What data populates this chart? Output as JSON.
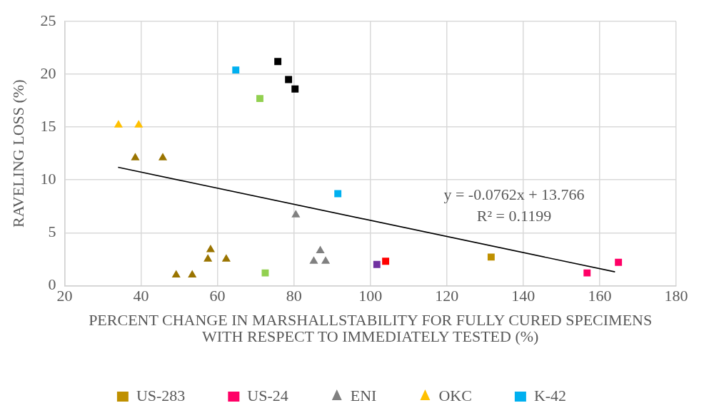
{
  "chart_data": {
    "type": "scatter",
    "xlabel": "PERCENT CHANGE IN MARSHALLSTABILITY FOR FULLY CURED SPECIMENS WITH RESPECT TO IMMEDIATELY TESTED (%)",
    "ylabel": "RAVELING LOSS (%)",
    "xlim": [
      20,
      180
    ],
    "xticks": [
      20,
      40,
      60,
      80,
      100,
      120,
      140,
      160,
      180
    ],
    "ylim": [
      0,
      25
    ],
    "yticks": [
      0,
      5,
      10,
      15,
      20,
      25
    ],
    "grid": true,
    "legend": "bottom",
    "series": [
      {
        "name": "US-283",
        "color": "#bf9000",
        "marker": "square",
        "x": [
          131.6
        ],
        "values": [
          2.7
        ]
      },
      {
        "name": "US-24",
        "color": "#ff0066",
        "marker": "square",
        "x": [
          156.7,
          164.9
        ],
        "values": [
          1.2,
          2.2
        ]
      },
      {
        "name": "ENI",
        "color": "#808080",
        "marker": "triangle",
        "x": [
          80.5,
          85.2,
          88.3,
          86.9
        ],
        "values": [
          6.7,
          2.3,
          2.3,
          3.3
        ]
      },
      {
        "name": "OKC",
        "color": "#ffc000",
        "marker": "triangle",
        "x": [
          34.1,
          39.4
        ],
        "values": [
          15.2,
          15.2
        ]
      },
      {
        "name": "K-42",
        "color": "#00b0f0",
        "marker": "square",
        "x": [
          64.8,
          91.5
        ],
        "values": [
          20.4,
          8.7
        ]
      },
      {
        "color": "#9a7400",
        "marker": "triangle",
        "x": [
          38.5,
          45.7,
          58.2,
          57.5,
          62.3,
          49.2,
          53.4
        ],
        "values": [
          12.1,
          12.1,
          3.4,
          2.5,
          2.5,
          1.0,
          1.0
        ]
      },
      {
        "color": "#000000",
        "marker": "square",
        "x": [
          75.8,
          78.6,
          80.3
        ],
        "values": [
          21.2,
          19.5,
          18.6
        ]
      },
      {
        "color": "#92d050",
        "marker": "square",
        "x": [
          71.1,
          72.5
        ],
        "values": [
          17.7,
          1.2
        ]
      },
      {
        "color": "#7030a0",
        "marker": "square",
        "x": [
          101.7
        ],
        "values": [
          2.0
        ]
      },
      {
        "color": "#ff0000",
        "marker": "square",
        "x": [
          104.0
        ],
        "values": [
          2.3
        ]
      },
      {
        "type": "line",
        "color": "#000000",
        "marker": "none",
        "x": [
          34,
          164
        ],
        "values": [
          11.2,
          1.3
        ]
      }
    ],
    "annotations": [
      "y = -0.0762x + 13.766",
      "R² = 0.1199"
    ]
  }
}
